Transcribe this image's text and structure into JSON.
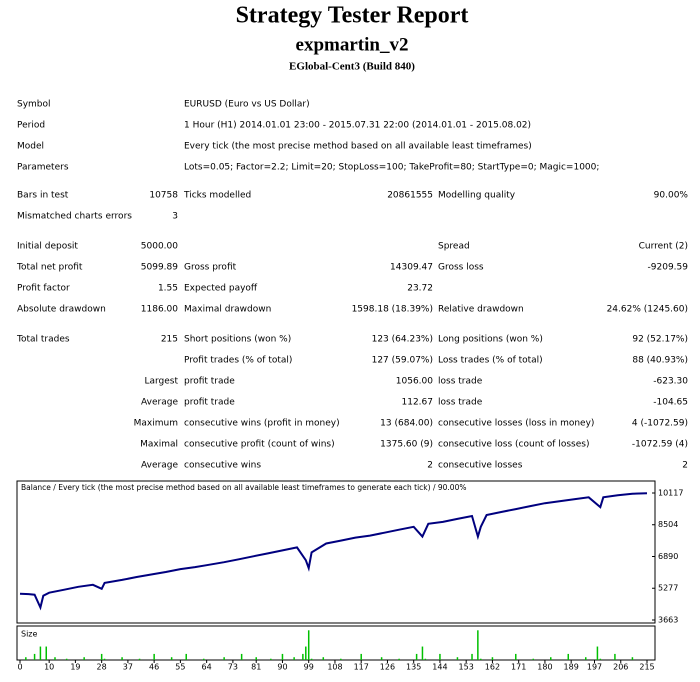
{
  "header": {
    "title": "Strategy Tester Report",
    "subtitle": "expmartin_v2",
    "server": "EGlobal-Cent3 (Build 840)"
  },
  "report": {
    "info": [
      [
        "Symbol",
        "EURUSD (Euro vs US Dollar)"
      ],
      [
        "Period",
        "1 Hour (H1) 2014.01.01 23:00 - 2015.07.31 22:00 (2014.01.01 - 2015.08.02)"
      ],
      [
        "Model",
        "Every tick (the most precise method based on all available least timeframes)"
      ],
      [
        "Parameters",
        "Lots=0.05; Factor=2.2; Limit=20; StopLoss=100; TakeProfit=80; StartType=0; Magic=1000;"
      ]
    ],
    "groups": [
      [
        [
          "Bars in test",
          "10758",
          "Ticks modelled",
          "20861555",
          "Modelling quality",
          "90.00%"
        ],
        [
          "Mismatched charts errors",
          "3"
        ]
      ],
      [
        [
          "Initial deposit",
          "5000.00",
          null,
          null,
          "Spread",
          "Current (2)"
        ],
        [
          "Total net profit",
          "5099.89",
          "Gross profit",
          "14309.47",
          "Gross loss",
          "-9209.59"
        ],
        [
          "Profit factor",
          "1.55",
          "Expected payoff",
          "23.72"
        ],
        [
          "Absolute drawdown",
          "1186.00",
          "Maximal drawdown",
          "1598.18 (18.39%)",
          "Relative drawdown",
          "24.62% (1245.60)"
        ]
      ],
      [
        [
          "Total trades",
          "215",
          "Short positions (won %)",
          "123 (64.23%)",
          "Long positions (won %)",
          "92 (52.17%)"
        ],
        [
          null,
          null,
          "Profit trades (% of total)",
          "127 (59.07%)",
          "Loss trades (% of total)",
          "88 (40.93%)"
        ],
        [
          null,
          "Largest",
          "profit trade",
          "1056.00",
          "loss trade",
          "-623.30"
        ],
        [
          null,
          "Average",
          "profit trade",
          "112.67",
          "loss trade",
          "-104.65"
        ],
        [
          null,
          "Maximum",
          "consecutive wins (profit in money)",
          "13 (684.00)",
          "consecutive losses (loss in money)",
          "4 (-1072.59)"
        ],
        [
          null,
          "Maximal",
          "consecutive profit (count of wins)",
          "1375.60 (9)",
          "consecutive loss (count of losses)",
          "-1072.59 (4)"
        ],
        [
          null,
          "Average",
          "consecutive wins",
          "2",
          "consecutive losses",
          "2"
        ]
      ]
    ]
  },
  "chart_data": {
    "type": "line",
    "title": "Balance / Every tick (the most precise method based on all available least timeframes to generate each tick) / 90.00%",
    "x": [
      0,
      3,
      5,
      7,
      8,
      10,
      15,
      20,
      25,
      28,
      29,
      35,
      40,
      46,
      50,
      55,
      60,
      64,
      70,
      75,
      80,
      85,
      90,
      95,
      98,
      99,
      100,
      105,
      110,
      115,
      120,
      125,
      130,
      135,
      138,
      140,
      145,
      150,
      155,
      157,
      158,
      160,
      165,
      170,
      175,
      180,
      185,
      190,
      195,
      199,
      200,
      205,
      210,
      215
    ],
    "values": [
      5000,
      4980,
      4950,
      4300,
      4900,
      5050,
      5200,
      5350,
      5450,
      5250,
      5550,
      5700,
      5850,
      6000,
      6100,
      6250,
      6350,
      6450,
      6600,
      6750,
      6900,
      7050,
      7200,
      7350,
      6700,
      6300,
      7100,
      7550,
      7700,
      7850,
      7950,
      8100,
      8250,
      8400,
      7900,
      8550,
      8650,
      8800,
      8950,
      7900,
      8400,
      9000,
      9150,
      9300,
      9450,
      9600,
      9700,
      9800,
      9900,
      9400,
      9900,
      10000,
      10080,
      10099.89
    ],
    "color": "#00007f",
    "xlim": [
      0,
      215
    ],
    "ylim": [
      3663,
      10117
    ],
    "yticks": [
      3663,
      5277,
      6890,
      8504,
      10117
    ],
    "xticks": [
      0,
      10,
      19,
      28,
      37,
      46,
      55,
      64,
      73,
      81,
      90,
      99,
      108,
      117,
      126,
      135,
      144,
      153,
      162,
      171,
      180,
      189,
      197,
      206,
      215
    ],
    "size": {
      "name": "Size",
      "color": "#00c000",
      "ylim": [
        0,
        1.3
      ],
      "x": [
        2,
        5,
        7,
        9,
        12,
        16,
        22,
        28,
        29,
        35,
        41,
        46,
        52,
        57,
        63,
        70,
        76,
        81,
        86,
        90,
        94,
        97,
        98,
        99,
        100,
        104,
        110,
        117,
        124,
        130,
        136,
        138,
        139,
        144,
        150,
        155,
        157,
        158,
        162,
        170,
        176,
        182,
        188,
        194,
        198,
        199,
        204,
        210
      ],
      "values": [
        0.11,
        0.24,
        0.53,
        0.53,
        0.11,
        0.05,
        0.11,
        0.24,
        0.05,
        0.11,
        0.05,
        0.24,
        0.11,
        0.24,
        0.05,
        0.11,
        0.24,
        0.11,
        0.05,
        0.24,
        0.11,
        0.24,
        0.53,
        1.17,
        0.05,
        0.11,
        0.05,
        0.24,
        0.11,
        0.05,
        0.24,
        0.53,
        0.05,
        0.24,
        0.11,
        0.24,
        1.17,
        0.05,
        0.11,
        0.24,
        0.05,
        0.11,
        0.24,
        0.11,
        0.53,
        0.05,
        0.24,
        0.11
      ]
    }
  }
}
